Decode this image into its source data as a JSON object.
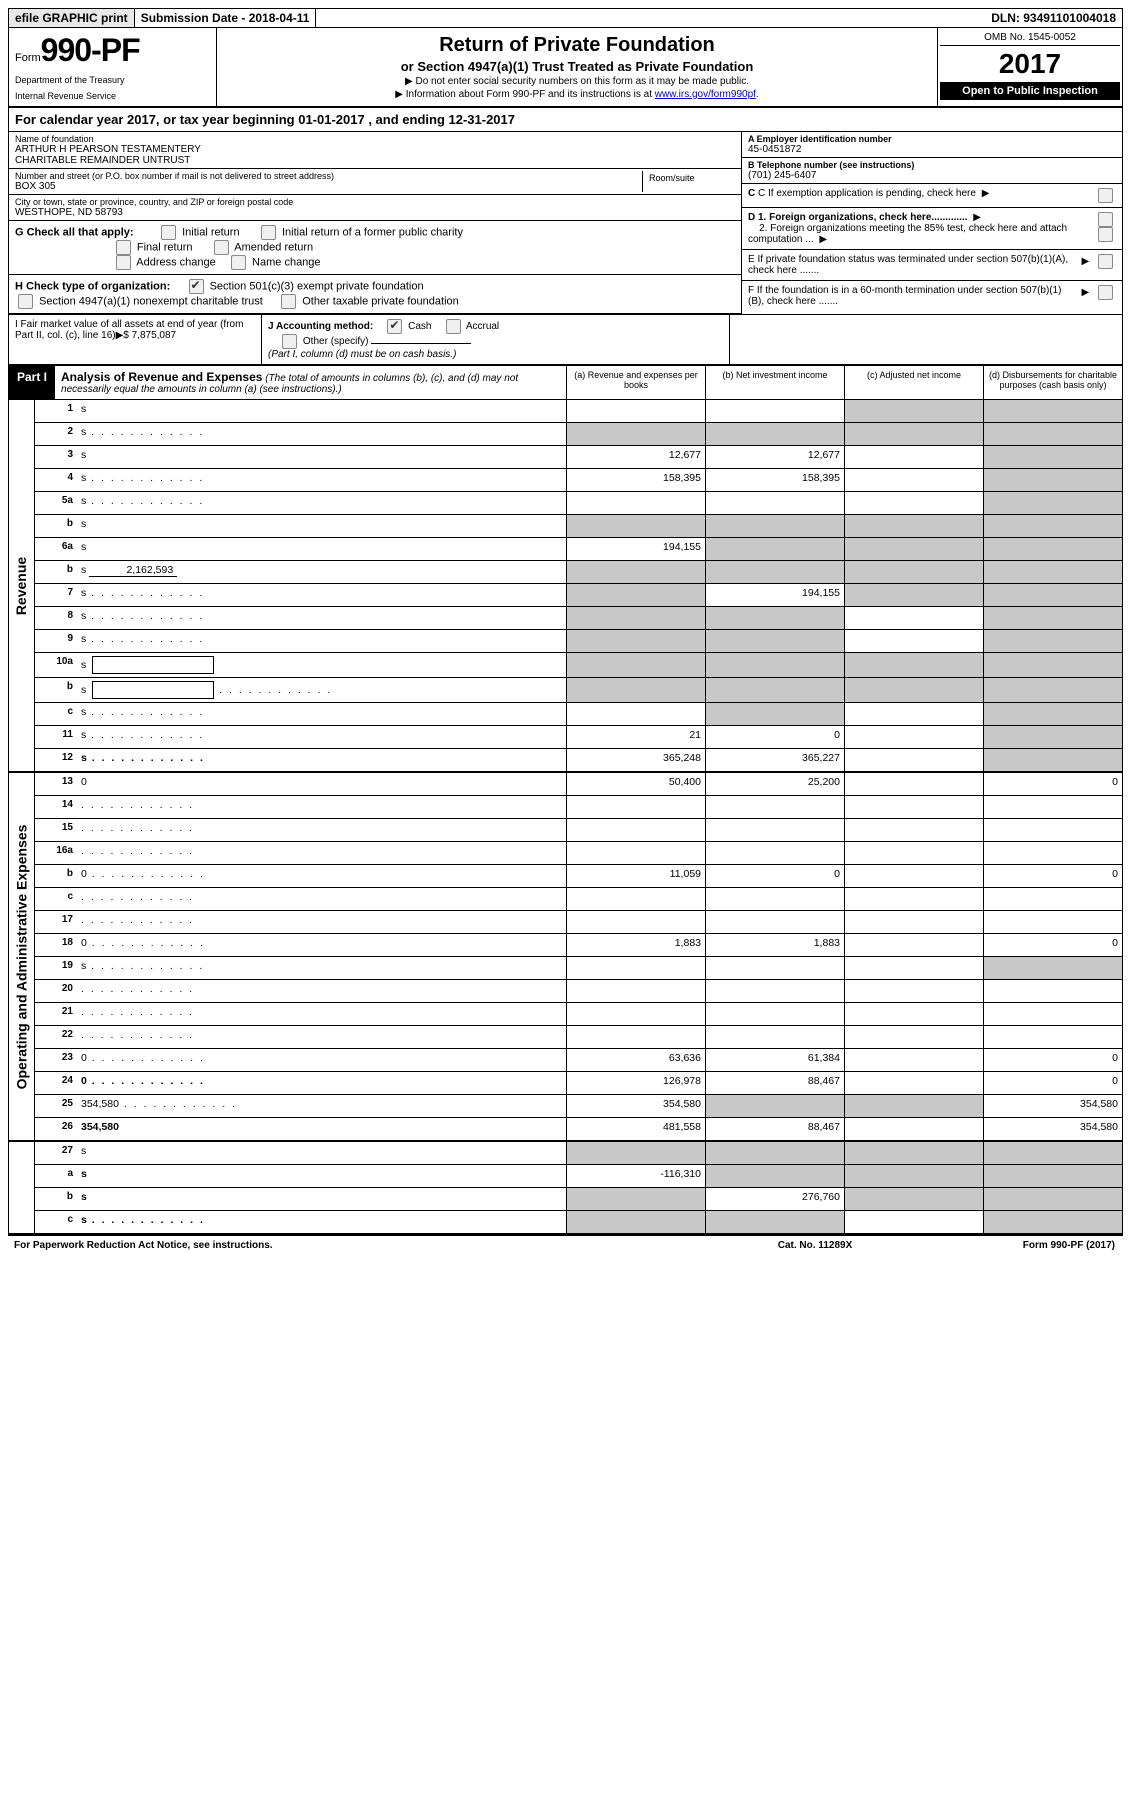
{
  "topbar": {
    "efile": "efile GRAPHIC print",
    "submission": "Submission Date - 2018-04-11",
    "dln": "DLN: 93491101004018"
  },
  "header": {
    "form_word": "Form",
    "form_number": "990-PF",
    "dept1": "Department of the Treasury",
    "dept2": "Internal Revenue Service",
    "title": "Return of Private Foundation",
    "subtitle": "or Section 4947(a)(1) Trust Treated as Private Foundation",
    "note1": "▶ Do not enter social security numbers on this form as it may be made public.",
    "note2_pre": "▶ Information about Form 990-PF and its instructions is at ",
    "note2_link": "www.irs.gov/form990pf",
    "note2_post": ".",
    "omb": "OMB No. 1545-0052",
    "year": "2017",
    "open": "Open to Public Inspection"
  },
  "calyear": "For calendar year 2017, or tax year beginning 01-01-2017            , and ending 12-31-2017",
  "entity": {
    "name_label": "Name of foundation",
    "name1": "ARTHUR H PEARSON TESTAMENTERY",
    "name2": "CHARITABLE REMAINDER UNTRUST",
    "addr_label": "Number and street (or P.O. box number if mail is not delivered to street address)",
    "addr": "BOX 305",
    "room_label": "Room/suite",
    "city_label": "City or town, state or province, country, and ZIP or foreign postal code",
    "city": "WESTHOPE, ND  58793",
    "ein_label": "A Employer identification number",
    "ein": "45-0451872",
    "tel_label": "B Telephone number (see instructions)",
    "tel": "(701) 245-6407",
    "c_label": "C If exemption application is pending, check here",
    "d1": "D 1. Foreign organizations, check here.............",
    "d2": "2. Foreign organizations meeting the 85% test, check here and attach computation ...",
    "e_label": "E  If private foundation status was terminated under section 507(b)(1)(A), check here .......",
    "f_label": "F  If the foundation is in a 60-month termination under section 507(b)(1)(B), check here .......",
    "g_label": "G Check all that apply:",
    "g_initial": "Initial return",
    "g_initial_former": "Initial return of a former public charity",
    "g_final": "Final return",
    "g_amended": "Amended return",
    "g_address": "Address change",
    "g_name": "Name change",
    "h_label": "H Check type of organization:",
    "h_501c3": "Section 501(c)(3) exempt private foundation",
    "h_4947": "Section 4947(a)(1) nonexempt charitable trust",
    "h_other": "Other taxable private foundation",
    "i_label": "I Fair market value of all assets at end of year (from Part II, col. (c), line 16)▶$  7,875,087",
    "j_label": "J Accounting method:",
    "j_cash": "Cash",
    "j_accrual": "Accrual",
    "j_other": "Other (specify)",
    "j_note": "(Part I, column (d) must be on cash basis.)"
  },
  "part1": {
    "label": "Part I",
    "title": "Analysis of Revenue and Expenses",
    "title_note": "(The total of amounts in columns (b), (c), and (d) may not necessarily equal the amounts in column (a) (see instructions).)",
    "col_a": "(a)    Revenue and expenses per books",
    "col_b": "(b)   Net investment income",
    "col_c": "(c)   Adjusted net income",
    "col_d": "(d)   Disbursements for charitable purposes (cash basis only)"
  },
  "sides": {
    "revenue": "Revenue",
    "expenses": "Operating and Administrative Expenses"
  },
  "lines": {
    "1": {
      "n": "1",
      "d": "s",
      "a": "",
      "b": "",
      "c": "s"
    },
    "2": {
      "n": "2",
      "d": "s",
      "a": "s",
      "b": "s",
      "c": "s",
      "dots": true
    },
    "3": {
      "n": "3",
      "d": "s",
      "a": "12,677",
      "b": "12,677",
      "c": ""
    },
    "4": {
      "n": "4",
      "d": "s",
      "a": "158,395",
      "b": "158,395",
      "c": "",
      "dots": true
    },
    "5a": {
      "n": "5a",
      "d": "s",
      "a": "",
      "b": "",
      "c": "",
      "dots": true
    },
    "5b": {
      "n": "b",
      "d": "s",
      "a": "s",
      "b": "s",
      "c": "s"
    },
    "6a": {
      "n": "6a",
      "d": "s",
      "a": "194,155",
      "b": "s",
      "c": "s"
    },
    "6b": {
      "n": "b",
      "d": "s",
      "inline": "2,162,593",
      "a": "s",
      "b": "s",
      "c": "s"
    },
    "7": {
      "n": "7",
      "d": "s",
      "a": "s",
      "b": "194,155",
      "c": "s",
      "dots": true
    },
    "8": {
      "n": "8",
      "d": "s",
      "a": "s",
      "b": "s",
      "c": "",
      "dots": true
    },
    "9": {
      "n": "9",
      "d": "s",
      "a": "s",
      "b": "s",
      "c": "",
      "dots": true
    },
    "10a": {
      "n": "10a",
      "d": "s",
      "box": true,
      "a": "s",
      "b": "s",
      "c": "s"
    },
    "10b": {
      "n": "b",
      "d": "s",
      "box": true,
      "a": "s",
      "b": "s",
      "c": "s",
      "dots": true
    },
    "10c": {
      "n": "c",
      "d": "s",
      "a": "",
      "b": "s",
      "c": "",
      "dots": true
    },
    "11": {
      "n": "11",
      "d": "s",
      "a": "21",
      "b": "0",
      "c": "",
      "dots": true
    },
    "12": {
      "n": "12",
      "d": "s",
      "a": "365,248",
      "b": "365,227",
      "c": "",
      "bold": true,
      "dots": true
    },
    "13": {
      "n": "13",
      "d": "0",
      "a": "50,400",
      "b": "25,200",
      "c": ""
    },
    "14": {
      "n": "14",
      "d": "",
      "a": "",
      "b": "",
      "c": "",
      "dots": true
    },
    "15": {
      "n": "15",
      "d": "",
      "a": "",
      "b": "",
      "c": "",
      "dots": true
    },
    "16a": {
      "n": "16a",
      "d": "",
      "a": "",
      "b": "",
      "c": "",
      "dots": true
    },
    "16b": {
      "n": "b",
      "d": "0",
      "a": "11,059",
      "b": "0",
      "c": "",
      "dots": true
    },
    "16c": {
      "n": "c",
      "d": "",
      "a": "",
      "b": "",
      "c": "",
      "dots": true
    },
    "17": {
      "n": "17",
      "d": "",
      "a": "",
      "b": "",
      "c": "",
      "dots": true
    },
    "18": {
      "n": "18",
      "d": "0",
      "a": "1,883",
      "b": "1,883",
      "c": "",
      "dots": true
    },
    "19": {
      "n": "19",
      "d": "s",
      "a": "",
      "b": "",
      "c": "",
      "dots": true
    },
    "20": {
      "n": "20",
      "d": "",
      "a": "",
      "b": "",
      "c": "",
      "dots": true
    },
    "21": {
      "n": "21",
      "d": "",
      "a": "",
      "b": "",
      "c": "",
      "dots": true
    },
    "22": {
      "n": "22",
      "d": "",
      "a": "",
      "b": "",
      "c": "",
      "dots": true
    },
    "23": {
      "n": "23",
      "d": "0",
      "a": "63,636",
      "b": "61,384",
      "c": "",
      "dots": true
    },
    "24": {
      "n": "24",
      "d": "0",
      "a": "126,978",
      "b": "88,467",
      "c": "",
      "bold": true,
      "dots": true
    },
    "25": {
      "n": "25",
      "d": "354,580",
      "a": "354,580",
      "b": "s",
      "c": "s",
      "dots": true
    },
    "26": {
      "n": "26",
      "d": "354,580",
      "a": "481,558",
      "b": "88,467",
      "c": "",
      "bold": true
    },
    "27": {
      "n": "27",
      "d": "s",
      "a": "s",
      "b": "s",
      "c": "s"
    },
    "27a": {
      "n": "a",
      "d": "s",
      "a": "-116,310",
      "b": "s",
      "c": "s",
      "bold": true
    },
    "27b": {
      "n": "b",
      "d": "s",
      "a": "s",
      "b": "276,760",
      "c": "s",
      "bold": true
    },
    "27c": {
      "n": "c",
      "d": "s",
      "a": "s",
      "b": "s",
      "c": "",
      "bold": true,
      "dots": true
    }
  },
  "footer": {
    "left": "For Paperwork Reduction Act Notice, see instructions.",
    "center": "Cat. No. 11289X",
    "right": "Form 990-PF (2017)"
  }
}
